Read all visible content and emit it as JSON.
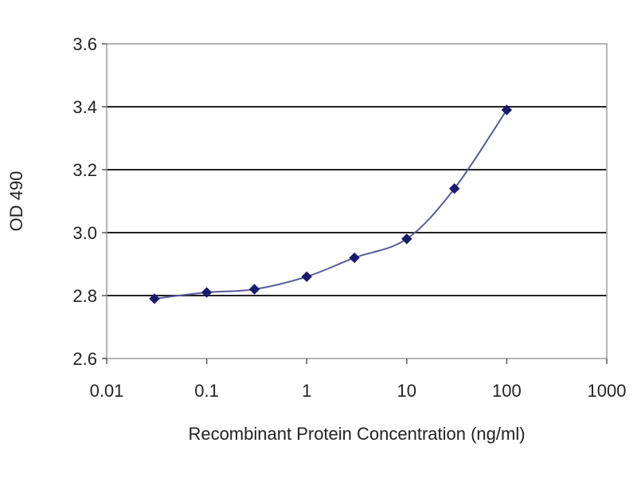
{
  "chart_data": {
    "type": "line",
    "title": "",
    "xlabel": "Recombinant Protein Concentration (ng/ml)",
    "ylabel": "OD 490",
    "x_scale": "log",
    "xlim": [
      0.01,
      1000
    ],
    "ylim": [
      2.6,
      3.6
    ],
    "x_ticks": [
      {
        "value": 0.01,
        "label": "0.01"
      },
      {
        "value": 0.1,
        "label": "0.1"
      },
      {
        "value": 1,
        "label": "1"
      },
      {
        "value": 10,
        "label": "10"
      },
      {
        "value": 100,
        "label": "100"
      },
      {
        "value": 1000,
        "label": "1000"
      }
    ],
    "y_ticks": [
      {
        "value": 2.6,
        "label": "2.6"
      },
      {
        "value": 2.8,
        "label": "2.8"
      },
      {
        "value": 3.0,
        "label": "3.0"
      },
      {
        "value": 3.2,
        "label": "3.2"
      },
      {
        "value": 3.4,
        "label": "3.4"
      },
      {
        "value": 3.6,
        "label": "3.6"
      }
    ],
    "grid": "horizontal",
    "legend": "none",
    "plot_background": "#ffffff",
    "series": [
      {
        "color": "#1a1a6e",
        "marker": "diamond",
        "x": [
          0.03,
          0.1,
          0.3,
          1,
          3,
          10,
          30,
          100
        ],
        "y": [
          2.79,
          2.81,
          2.82,
          2.86,
          2.92,
          2.98,
          3.14,
          3.39
        ]
      }
    ]
  }
}
